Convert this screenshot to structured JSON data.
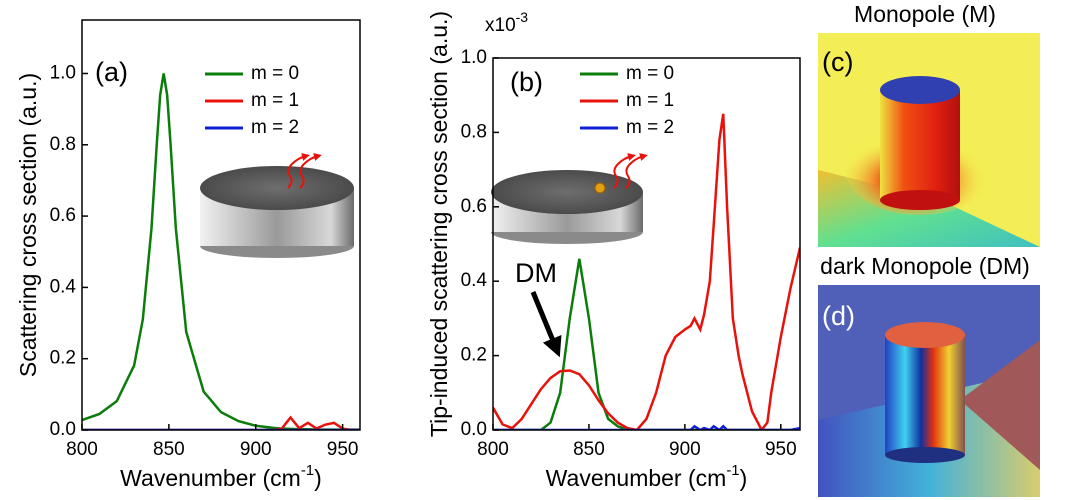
{
  "chart_data": [
    {
      "type": "line",
      "panel_label": "(a)",
      "x_label": [
        "Wavenumber (cm",
        "-1",
        ")"
      ],
      "y_label": "Scattering cross section (a.u.)",
      "xlim": [
        800,
        960
      ],
      "xticks": [
        800,
        850,
        900,
        950
      ],
      "ylim": [
        0,
        1.15
      ],
      "yticks": [
        {
          "value": 0,
          "label": "0.0"
        },
        0.2,
        0.4,
        0.6,
        0.8,
        {
          "value": 1,
          "label": "1.0"
        }
      ],
      "x": [
        800,
        810,
        820,
        830,
        835,
        840,
        843,
        845,
        847,
        849,
        851,
        854,
        860,
        870,
        880,
        890,
        900,
        910,
        915,
        920,
        925,
        930,
        935,
        940,
        945,
        950,
        955,
        960
      ],
      "series": [
        {
          "name": "m = 0",
          "color": "#0a7d0a",
          "values": [
            0.028,
            0.045,
            0.081,
            0.181,
            0.31,
            0.566,
            0.8,
            0.94,
            1.0,
            0.94,
            0.8,
            0.566,
            0.275,
            0.108,
            0.05,
            0.025,
            0.012,
            0.006,
            0.004,
            0.003,
            0.002,
            0.002,
            0.001,
            0.001,
            0.001,
            0.001,
            0.001,
            0.001
          ]
        },
        {
          "name": "m = 1",
          "color": "#e8120c",
          "values": [
            0,
            0,
            0,
            0,
            0,
            0,
            0,
            0,
            0,
            0,
            0,
            0,
            0,
            0,
            0,
            0,
            0,
            0,
            0.004,
            0.035,
            0.005,
            0.02,
            0.004,
            0.015,
            0.02,
            0.004,
            0,
            0
          ]
        },
        {
          "name": "m = 2",
          "color": "#1020d8",
          "values": [
            0,
            0,
            0,
            0,
            0,
            0,
            0,
            0,
            0,
            0,
            0,
            0,
            0,
            0,
            0,
            0,
            0,
            0,
            0,
            0,
            0,
            0,
            0,
            0,
            0,
            0,
            0,
            0
          ]
        }
      ]
    },
    {
      "type": "line",
      "panel_label": "(b)",
      "x_label": [
        "Wavenumber (cm",
        "-1",
        ")"
      ],
      "y_label": "Tip-induced scattering cross section (a.u.)",
      "y_multiplier": [
        "x10",
        "-3"
      ],
      "annotation": "DM",
      "xlim": [
        800,
        960
      ],
      "xticks": [
        800,
        850,
        900,
        950
      ],
      "ylim": [
        0,
        1
      ],
      "yticks": [
        {
          "value": 0,
          "label": "0.0"
        },
        0.2,
        0.4,
        0.6,
        0.8,
        {
          "value": 1,
          "label": "1.0"
        }
      ],
      "x": [
        800,
        805,
        810,
        815,
        820,
        825,
        830,
        835,
        840,
        845,
        850,
        855,
        860,
        865,
        870,
        875,
        880,
        885,
        890,
        895,
        900,
        903,
        905,
        908,
        910,
        913,
        915,
        918,
        920,
        922,
        925,
        928,
        930,
        935,
        940,
        943,
        945,
        950,
        955,
        960
      ],
      "series": [
        {
          "name": "m = 0",
          "color": "#0a7d0a",
          "values": [
            0,
            0,
            0,
            0,
            0,
            0,
            0.02,
            0.1,
            0.3,
            0.46,
            0.3,
            0.1,
            0.03,
            0.01,
            0,
            0,
            0,
            0,
            0,
            0,
            0,
            0,
            0,
            0,
            0,
            0,
            0,
            0,
            0,
            0,
            0,
            0,
            0,
            0,
            0,
            0,
            0,
            0,
            0,
            0
          ]
        },
        {
          "name": "m = 1",
          "color": "#e8120c",
          "values": [
            0.06,
            0.015,
            0.005,
            0.03,
            0.07,
            0.11,
            0.14,
            0.158,
            0.16,
            0.15,
            0.12,
            0.08,
            0.045,
            0.02,
            0.005,
            0,
            0.03,
            0.1,
            0.2,
            0.25,
            0.27,
            0.28,
            0.3,
            0.27,
            0.31,
            0.4,
            0.55,
            0.78,
            0.85,
            0.6,
            0.3,
            0.2,
            0.15,
            0.05,
            0,
            0.02,
            0.1,
            0.25,
            0.38,
            0.49
          ]
        },
        {
          "name": "m = 2",
          "color": "#1020d8",
          "values": [
            0,
            0,
            0,
            0,
            0,
            0,
            0,
            0,
            0,
            0,
            0,
            0,
            0,
            0,
            0,
            0,
            0,
            0,
            0,
            0,
            0,
            0,
            0.01,
            0,
            0.005,
            0,
            0.01,
            0,
            0.01,
            0,
            0,
            0,
            0,
            0,
            0,
            0,
            0,
            0,
            0,
            0.005
          ]
        }
      ]
    }
  ],
  "images": [
    {
      "panel_label": "(c)",
      "title": "Monopole (M)"
    },
    {
      "panel_label": "(d)",
      "title": "dark Monopole (DM)"
    }
  ]
}
